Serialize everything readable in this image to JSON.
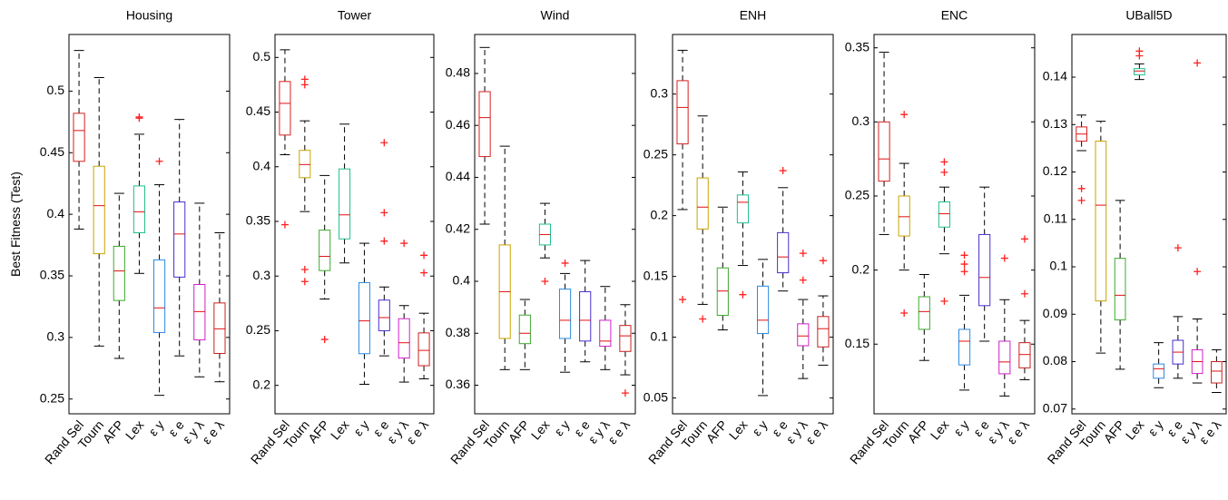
{
  "ylabel": "Best Fitness (Test)",
  "chart_data": [
    {
      "type": "box",
      "title": "Housing",
      "categories": [
        "Rand Sel",
        "Tourn",
        "AFP",
        "Lex",
        "ε y",
        "ε e",
        "ε y λ",
        "ε e λ"
      ],
      "colors": [
        "#d62020",
        "#c9a400",
        "#3caa2c",
        "#1fbf8f",
        "#2a8ae0",
        "#4b2ccf",
        "#d020c8",
        "#cc2020"
      ],
      "median_color": "#e01010",
      "outlier_color": "#ff2020",
      "ylim": [
        0.238,
        0.546
      ],
      "yticks": [
        0.25,
        0.3,
        0.35,
        0.4,
        0.45,
        0.5
      ],
      "boxes": [
        {
          "min": 0.388,
          "q1": 0.443,
          "median": 0.468,
          "q3": 0.482,
          "max": 0.533,
          "outliers": []
        },
        {
          "min": 0.293,
          "q1": 0.368,
          "median": 0.407,
          "q3": 0.439,
          "max": 0.511,
          "outliers": []
        },
        {
          "min": 0.283,
          "q1": 0.33,
          "median": 0.354,
          "q3": 0.374,
          "max": 0.417,
          "outliers": []
        },
        {
          "min": 0.352,
          "q1": 0.385,
          "median": 0.402,
          "q3": 0.423,
          "max": 0.465,
          "outliers": [
            0.479,
            0.478
          ]
        },
        {
          "min": 0.253,
          "q1": 0.304,
          "median": 0.324,
          "q3": 0.363,
          "max": 0.424,
          "outliers": [
            0.443
          ]
        },
        {
          "min": 0.285,
          "q1": 0.349,
          "median": 0.384,
          "q3": 0.41,
          "max": 0.477,
          "outliers": []
        },
        {
          "min": 0.268,
          "q1": 0.298,
          "median": 0.321,
          "q3": 0.343,
          "max": 0.409,
          "outliers": []
        },
        {
          "min": 0.264,
          "q1": 0.287,
          "median": 0.307,
          "q3": 0.328,
          "max": 0.385,
          "outliers": []
        }
      ]
    },
    {
      "type": "box",
      "title": "Tower",
      "categories": [
        "Rand Sel",
        "Tourn",
        "AFP",
        "Lex",
        "ε y",
        "ε e",
        "ε y λ",
        "ε e λ"
      ],
      "colors": [
        "#d62020",
        "#c9a400",
        "#3caa2c",
        "#1fbf8f",
        "#2a8ae0",
        "#4b2ccf",
        "#d020c8",
        "#cc2020"
      ],
      "median_color": "#e01010",
      "outlier_color": "#ff2020",
      "ylim": [
        0.174,
        0.521
      ],
      "yticks": [
        0.2,
        0.25,
        0.3,
        0.35,
        0.4,
        0.45,
        0.5
      ],
      "boxes": [
        {
          "min": 0.411,
          "q1": 0.429,
          "median": 0.458,
          "q3": 0.478,
          "max": 0.507,
          "outliers": [
            0.347
          ]
        },
        {
          "min": 0.359,
          "q1": 0.39,
          "median": 0.402,
          "q3": 0.415,
          "max": 0.442,
          "outliers": [
            0.48,
            0.475,
            0.306,
            0.295
          ]
        },
        {
          "min": 0.279,
          "q1": 0.305,
          "median": 0.318,
          "q3": 0.342,
          "max": 0.392,
          "outliers": [
            0.242
          ]
        },
        {
          "min": 0.312,
          "q1": 0.334,
          "median": 0.356,
          "q3": 0.398,
          "max": 0.439,
          "outliers": []
        },
        {
          "min": 0.201,
          "q1": 0.229,
          "median": 0.259,
          "q3": 0.294,
          "max": 0.33,
          "outliers": []
        },
        {
          "min": 0.227,
          "q1": 0.25,
          "median": 0.262,
          "q3": 0.278,
          "max": 0.29,
          "outliers": [
            0.422,
            0.358,
            0.332
          ]
        },
        {
          "min": 0.203,
          "q1": 0.225,
          "median": 0.239,
          "q3": 0.261,
          "max": 0.273,
          "outliers": [
            0.33
          ]
        },
        {
          "min": 0.206,
          "q1": 0.218,
          "median": 0.232,
          "q3": 0.248,
          "max": 0.266,
          "outliers": [
            0.319,
            0.303
          ]
        }
      ]
    },
    {
      "type": "box",
      "title": "Wind",
      "categories": [
        "Rand Sel",
        "Tourn",
        "AFP",
        "Lex",
        "ε y",
        "ε e",
        "ε y λ",
        "ε e λ"
      ],
      "colors": [
        "#d62020",
        "#c9a400",
        "#3caa2c",
        "#1fbf8f",
        "#2a8ae0",
        "#4b2ccf",
        "#d020c8",
        "#cc2020"
      ],
      "median_color": "#e01010",
      "outlier_color": "#ff2020",
      "ylim": [
        0.349,
        0.495
      ],
      "yticks": [
        0.36,
        0.38,
        0.4,
        0.42,
        0.44,
        0.46,
        0.48
      ],
      "boxes": [
        {
          "min": 0.422,
          "q1": 0.448,
          "median": 0.463,
          "q3": 0.473,
          "max": 0.49,
          "outliers": []
        },
        {
          "min": 0.366,
          "q1": 0.378,
          "median": 0.396,
          "q3": 0.414,
          "max": 0.452,
          "outliers": []
        },
        {
          "min": 0.366,
          "q1": 0.376,
          "median": 0.38,
          "q3": 0.387,
          "max": 0.393,
          "outliers": []
        },
        {
          "min": 0.409,
          "q1": 0.414,
          "median": 0.418,
          "q3": 0.422,
          "max": 0.43,
          "outliers": [
            0.4
          ]
        },
        {
          "min": 0.365,
          "q1": 0.378,
          "median": 0.385,
          "q3": 0.397,
          "max": 0.403,
          "outliers": [
            0.407
          ]
        },
        {
          "min": 0.369,
          "q1": 0.377,
          "median": 0.385,
          "q3": 0.396,
          "max": 0.408,
          "outliers": []
        },
        {
          "min": 0.366,
          "q1": 0.375,
          "median": 0.377,
          "q3": 0.385,
          "max": 0.398,
          "outliers": []
        },
        {
          "min": 0.364,
          "q1": 0.373,
          "median": 0.379,
          "q3": 0.383,
          "max": 0.391,
          "outliers": [
            0.357
          ]
        }
      ]
    },
    {
      "type": "box",
      "title": "ENH",
      "categories": [
        "Rand Sel",
        "Tourn",
        "AFP",
        "Lex",
        "ε y",
        "ε e",
        "ε y λ",
        "ε e λ"
      ],
      "colors": [
        "#d62020",
        "#c9a400",
        "#3caa2c",
        "#1fbf8f",
        "#2a8ae0",
        "#4b2ccf",
        "#d020c8",
        "#cc2020"
      ],
      "median_color": "#e01010",
      "outlier_color": "#ff2020",
      "ylim": [
        0.037,
        0.349
      ],
      "yticks": [
        0.05,
        0.1,
        0.15,
        0.2,
        0.25,
        0.3
      ],
      "boxes": [
        {
          "min": 0.205,
          "q1": 0.259,
          "median": 0.289,
          "q3": 0.311,
          "max": 0.336,
          "outliers": [
            0.131
          ]
        },
        {
          "min": 0.127,
          "q1": 0.189,
          "median": 0.207,
          "q3": 0.231,
          "max": 0.282,
          "outliers": [
            0.115
          ]
        },
        {
          "min": 0.106,
          "q1": 0.118,
          "median": 0.138,
          "q3": 0.157,
          "max": 0.207,
          "outliers": []
        },
        {
          "min": 0.159,
          "q1": 0.194,
          "median": 0.211,
          "q3": 0.217,
          "max": 0.236,
          "outliers": [
            0.135
          ]
        },
        {
          "min": 0.052,
          "q1": 0.103,
          "median": 0.114,
          "q3": 0.142,
          "max": 0.164,
          "outliers": []
        },
        {
          "min": 0.138,
          "q1": 0.153,
          "median": 0.166,
          "q3": 0.186,
          "max": 0.223,
          "outliers": [
            0.237
          ]
        },
        {
          "min": 0.066,
          "q1": 0.093,
          "median": 0.101,
          "q3": 0.111,
          "max": 0.131,
          "outliers": [
            0.169,
            0.147
          ]
        },
        {
          "min": 0.077,
          "q1": 0.092,
          "median": 0.107,
          "q3": 0.117,
          "max": 0.134,
          "outliers": [
            0.163
          ]
        }
      ]
    },
    {
      "type": "box",
      "title": "ENC",
      "categories": [
        "Rand Sel",
        "Tourn",
        "AFP",
        "Lex",
        "ε y",
        "ε e",
        "ε y λ",
        "ε e λ"
      ],
      "colors": [
        "#d62020",
        "#c9a400",
        "#3caa2c",
        "#1fbf8f",
        "#2a8ae0",
        "#4b2ccf",
        "#d020c8",
        "#cc2020"
      ],
      "median_color": "#e01010",
      "outlier_color": "#ff2020",
      "ylim": [
        0.103,
        0.359
      ],
      "yticks": [
        0.15,
        0.2,
        0.25,
        0.3,
        0.35
      ],
      "boxes": [
        {
          "min": 0.224,
          "q1": 0.26,
          "median": 0.275,
          "q3": 0.3,
          "max": 0.347,
          "outliers": []
        },
        {
          "min": 0.2,
          "q1": 0.223,
          "median": 0.236,
          "q3": 0.25,
          "max": 0.272,
          "outliers": [
            0.305,
            0.171
          ]
        },
        {
          "min": 0.139,
          "q1": 0.16,
          "median": 0.172,
          "q3": 0.182,
          "max": 0.197,
          "outliers": []
        },
        {
          "min": 0.211,
          "q1": 0.229,
          "median": 0.238,
          "q3": 0.246,
          "max": 0.256,
          "outliers": [
            0.273,
            0.266,
            0.179
          ]
        },
        {
          "min": 0.119,
          "q1": 0.136,
          "median": 0.152,
          "q3": 0.16,
          "max": 0.183,
          "outliers": [
            0.21,
            0.204,
            0.199
          ]
        },
        {
          "min": 0.152,
          "q1": 0.176,
          "median": 0.195,
          "q3": 0.224,
          "max": 0.256,
          "outliers": []
        },
        {
          "min": 0.115,
          "q1": 0.13,
          "median": 0.138,
          "q3": 0.152,
          "max": 0.18,
          "outliers": [
            0.208
          ]
        },
        {
          "min": 0.126,
          "q1": 0.134,
          "median": 0.143,
          "q3": 0.151,
          "max": 0.166,
          "outliers": [
            0.221,
            0.184
          ]
        }
      ]
    },
    {
      "type": "box",
      "title": "UBall5D",
      "categories": [
        "Rand Sel",
        "Tourn",
        "AFP",
        "Lex",
        "ε y",
        "ε e",
        "ε y λ",
        "ε e λ"
      ],
      "colors": [
        "#d62020",
        "#c9a400",
        "#3caa2c",
        "#1fbf8f",
        "#2a8ae0",
        "#4b2ccf",
        "#d020c8",
        "#cc2020"
      ],
      "median_color": "#e01010",
      "outlier_color": "#ff2020",
      "ylim": [
        0.069,
        0.149
      ],
      "yticks": [
        0.07,
        0.08,
        0.09,
        0.1,
        0.11,
        0.12,
        0.13,
        0.14
      ],
      "boxes": [
        {
          "min": 0.1245,
          "q1": 0.1265,
          "median": 0.128,
          "q3": 0.1295,
          "max": 0.132,
          "outliers": [
            0.1165,
            0.114
          ]
        },
        {
          "min": 0.0818,
          "q1": 0.0928,
          "median": 0.113,
          "q3": 0.1265,
          "max": 0.1307,
          "outliers": []
        },
        {
          "min": 0.0784,
          "q1": 0.0888,
          "median": 0.094,
          "q3": 0.1018,
          "max": 0.114,
          "outliers": []
        },
        {
          "min": 0.1395,
          "q1": 0.1405,
          "median": 0.1413,
          "q3": 0.1418,
          "max": 0.1428,
          "outliers": [
            0.1455,
            0.1445
          ]
        },
        {
          "min": 0.0745,
          "q1": 0.0765,
          "median": 0.0785,
          "q3": 0.0795,
          "max": 0.084,
          "outliers": []
        },
        {
          "min": 0.0765,
          "q1": 0.0795,
          "median": 0.082,
          "q3": 0.0845,
          "max": 0.0895,
          "outliers": [
            0.104
          ]
        },
        {
          "min": 0.0755,
          "q1": 0.0775,
          "median": 0.08,
          "q3": 0.0825,
          "max": 0.089,
          "outliers": [
            0.143,
            0.099
          ]
        },
        {
          "min": 0.0735,
          "q1": 0.0755,
          "median": 0.078,
          "q3": 0.08,
          "max": 0.0825,
          "outliers": []
        }
      ]
    }
  ]
}
